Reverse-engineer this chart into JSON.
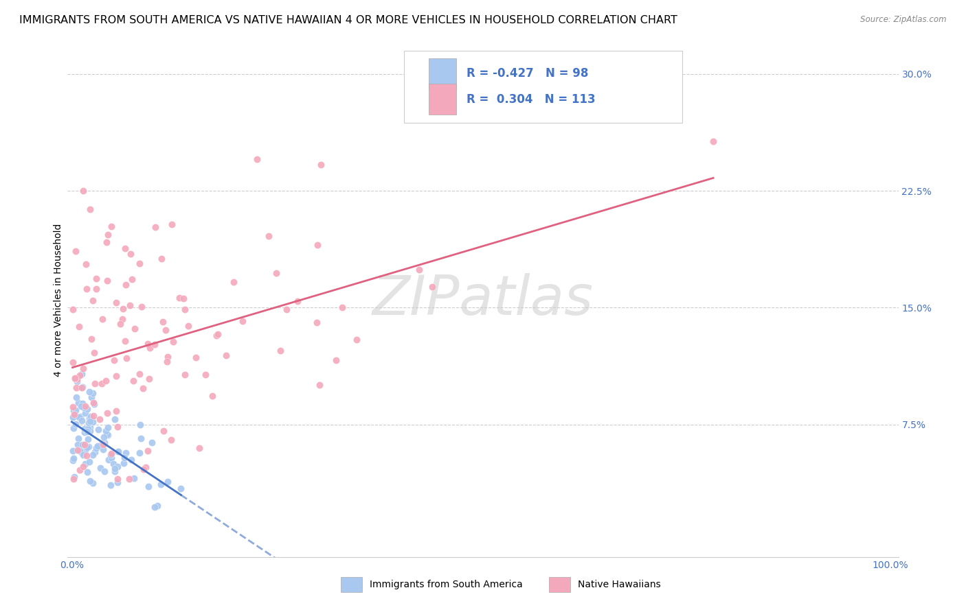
{
  "title": "IMMIGRANTS FROM SOUTH AMERICA VS NATIVE HAWAIIAN 4 OR MORE VEHICLES IN HOUSEHOLD CORRELATION CHART",
  "source": "Source: ZipAtlas.com",
  "ylabel": "4 or more Vehicles in Household",
  "xlim": [
    -0.005,
    1.01
  ],
  "ylim": [
    -0.01,
    0.32
  ],
  "xticks": [
    0.0,
    1.0
  ],
  "xticklabels": [
    "0.0%",
    "100.0%"
  ],
  "yticks": [
    0.075,
    0.15,
    0.225,
    0.3
  ],
  "yticklabels": [
    "7.5%",
    "15.0%",
    "22.5%",
    "30.0%"
  ],
  "blue_R": -0.427,
  "blue_N": 98,
  "pink_R": 0.304,
  "pink_N": 113,
  "blue_color": "#a8c8f0",
  "pink_color": "#f4a8bc",
  "blue_line_color": "#4472c4",
  "pink_line_color": "#e06080",
  "watermark": "ZIPatlas",
  "legend_label_blue": "Immigrants from South America",
  "legend_label_pink": "Native Hawaiians",
  "grid_color": "#cccccc",
  "title_fontsize": 11.5,
  "axis_label_fontsize": 10,
  "tick_fontsize": 10,
  "legend_fontsize": 12,
  "tick_color": "#4472c4"
}
